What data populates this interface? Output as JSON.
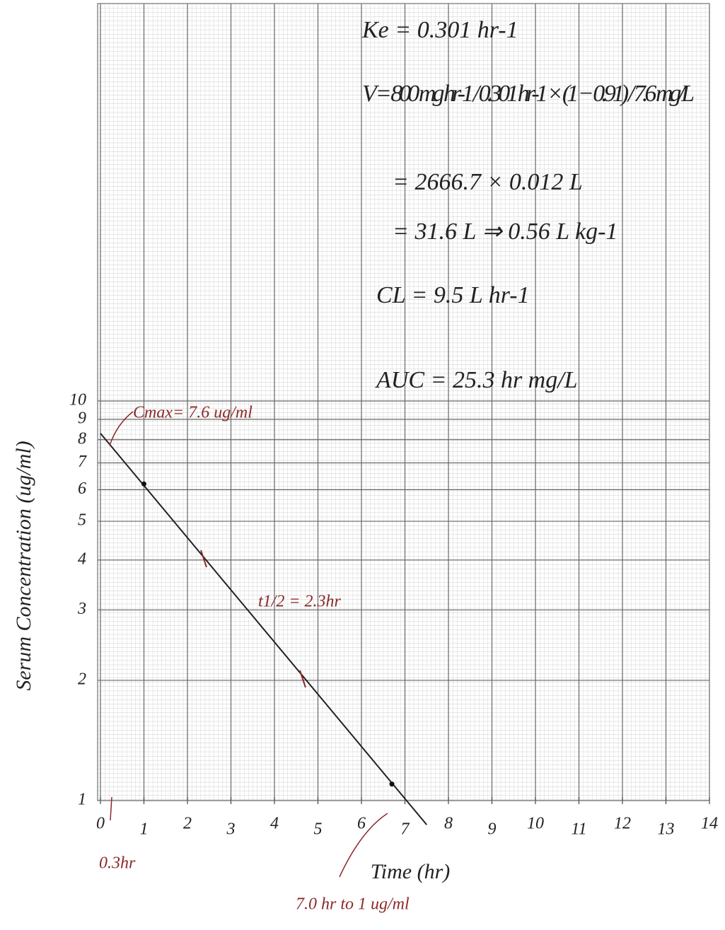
{
  "chart_data": {
    "type": "line",
    "x_label": "Time (hr)",
    "y_label": "Serum Concentration (ug/ml)",
    "log_y": true,
    "grid": true,
    "xlim": [
      0,
      14
    ],
    "xticks": [
      0,
      1,
      2,
      3,
      4,
      5,
      6,
      7,
      8,
      9,
      10,
      11,
      12,
      13,
      14
    ],
    "ylim": [
      1,
      100
    ],
    "yticks": [
      1,
      2,
      3,
      4,
      5,
      6,
      7,
      8,
      9,
      10
    ],
    "series": [
      {
        "color": "#222222",
        "x": [
          0,
          7.5
        ],
        "values": [
          8.3,
          0.87
        ]
      }
    ],
    "points": {
      "color": "#111111",
      "x": [
        1,
        6.7
      ],
      "values": [
        6.2,
        1.1
      ]
    },
    "annotations": [
      "Cmax= 7.6 ug/ml",
      "t1/2 = 2.3hr",
      "0.3hr",
      "7.0 hr to 1 ug/ml"
    ],
    "calculations": [
      "Ke = 0.301 hr-1",
      "V = 800 mg hr-1 / 0.301 hr-1 × (1 − 0.91) / 7.6 mg/L",
      "= 2666.7 × 0.012 L",
      "= 31.6 L ⇒ 0.56 L kg-1",
      "CL = 9.5 L hr-1",
      "AUC = 25.3 hr mg/L"
    ]
  }
}
